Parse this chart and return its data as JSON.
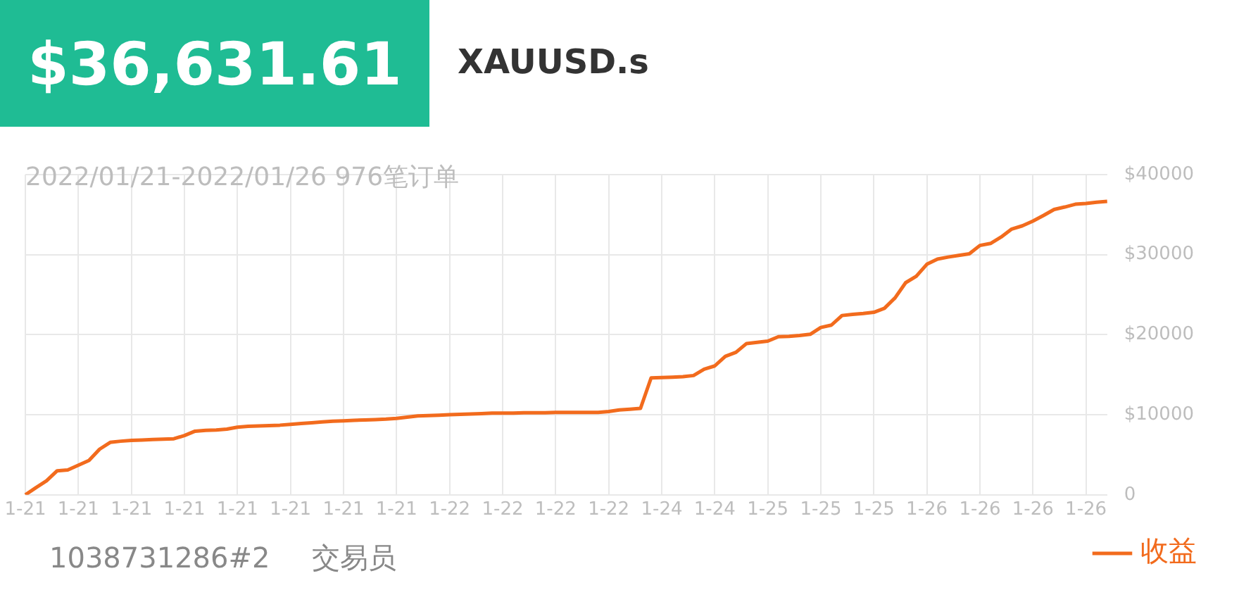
{
  "chart_data": {
    "type": "line",
    "title": "$36,631.61",
    "subtitle": "XAUUSD.s",
    "annotations": [
      "2022/01/21-2022/01/26 976笔订单",
      "1038731286#2",
      "交易员"
    ],
    "categories": [
      "1-21",
      null,
      null,
      null,
      null,
      "1-21",
      null,
      null,
      null,
      null,
      "1-21",
      null,
      null,
      null,
      null,
      "1-21",
      null,
      null,
      null,
      null,
      "1-21",
      null,
      null,
      null,
      null,
      "1-21",
      null,
      null,
      null,
      null,
      "1-21",
      null,
      null,
      null,
      null,
      "1-21",
      null,
      null,
      null,
      null,
      "1-22",
      null,
      null,
      null,
      null,
      "1-22",
      null,
      null,
      null,
      null,
      "1-22",
      null,
      null,
      null,
      null,
      "1-22",
      null,
      null,
      null,
      null,
      "1-24",
      null,
      null,
      null,
      null,
      "1-24",
      null,
      null,
      null,
      null,
      "1-25",
      null,
      null,
      null,
      null,
      "1-25",
      null,
      null,
      null,
      null,
      "1-25",
      null,
      null,
      null,
      null,
      "1-26",
      null,
      null,
      null,
      null,
      "1-26",
      null,
      null,
      null,
      null,
      "1-26",
      null,
      null,
      null,
      null,
      "1-26",
      null,
      null
    ],
    "ylim": [
      0,
      40000
    ],
    "yticks": [
      0,
      {
        "value": 10000,
        "label": "$10000"
      },
      {
        "value": 20000,
        "label": "$20000"
      },
      {
        "value": 30000,
        "label": "$30000"
      },
      {
        "value": 40000,
        "label": "$40000"
      }
    ],
    "grid": true,
    "legend": "bottom right",
    "marker": "none",
    "line_style": "solid",
    "series": [
      {
        "name": "收益",
        "color": "#f26b1d",
        "values": [
          0,
          900,
          1750,
          3000,
          3100,
          3700,
          4300,
          5700,
          6550,
          6700,
          6800,
          6850,
          6900,
          6950,
          7000,
          7400,
          7950,
          8050,
          8100,
          8200,
          8450,
          8550,
          8600,
          8650,
          8700,
          8800,
          8900,
          9000,
          9100,
          9200,
          9250,
          9300,
          9350,
          9400,
          9450,
          9550,
          9700,
          9850,
          9900,
          9950,
          10000,
          10050,
          10100,
          10150,
          10200,
          10200,
          10200,
          10250,
          10250,
          10250,
          10300,
          10300,
          10300,
          10300,
          10300,
          10400,
          10600,
          10700,
          10800,
          14600,
          14650,
          14700,
          14750,
          14900,
          15700,
          16100,
          17300,
          17800,
          18900,
          19050,
          19200,
          19750,
          19800,
          19900,
          20050,
          20900,
          21200,
          22400,
          22550,
          22650,
          22800,
          23300,
          24600,
          26500,
          27300,
          28800,
          29450,
          29700,
          29900,
          30100,
          31150,
          31400,
          32200,
          33200,
          33600,
          34200,
          34900,
          35650,
          35950,
          36300,
          36400,
          36550,
          36650
        ]
      }
    ]
  }
}
